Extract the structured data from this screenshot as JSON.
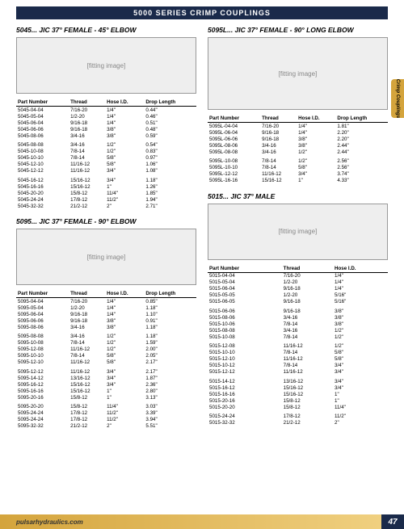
{
  "header": "5000 SERIES CRIMP COUPLINGS",
  "side_tab": "Crimp Couplings",
  "footer_url": "pulsarhydraulics.com",
  "footer_page": "47",
  "sections": {
    "s5045": {
      "title": "5045... JIC 37° FEMALE - 45° ELBOW",
      "img": "[fitting image]",
      "cols": [
        "Part Number",
        "Thread",
        "Hose I.D.",
        "Drop Length"
      ],
      "rows": [
        [
          "5045-04-04",
          "7/16-20",
          "1/4\"",
          "0.44\""
        ],
        [
          "5045-05-04",
          "1/2-20",
          "1/4\"",
          "0.46\""
        ],
        [
          "5045-06-04",
          "9/16-18",
          "1/4\"",
          "0.51\""
        ],
        [
          "5045-06-06",
          "9/16-18",
          "3/8\"",
          "0.48\""
        ],
        [
          "5045-08-06",
          "3/4-16",
          "3/8\"",
          "0.59\""
        ]
      ],
      "rows2": [
        [
          "5045-08-08",
          "3/4-16",
          "1/2\"",
          "0.54\""
        ],
        [
          "5045-10-08",
          "7/8-14",
          "1/2\"",
          "0.83\""
        ],
        [
          "5045-10-10",
          "7/8-14",
          "5/8\"",
          "0.97\""
        ],
        [
          "5045-12-10",
          "11/16-12",
          "5/8\"",
          "1.06\""
        ],
        [
          "5045-12-12",
          "11/16-12",
          "3/4\"",
          "1.08\""
        ]
      ],
      "rows3": [
        [
          "5045-16-12",
          "15/16-12",
          "3/4\"",
          "1.18\""
        ],
        [
          "5045-16-16",
          "15/16-12",
          "1\"",
          "1.26\""
        ],
        [
          "5045-20-20",
          "15/8-12",
          "11/4\"",
          "1.85\""
        ],
        [
          "5045-24-24",
          "17/8-12",
          "11/2\"",
          "1.94\""
        ],
        [
          "5045-32-32",
          "21/2-12",
          "2\"",
          "2.71\""
        ]
      ]
    },
    "s5095": {
      "title": "5095... JIC 37° FEMALE - 90° ELBOW",
      "img": "[fitting image]",
      "cols": [
        "Part Number",
        "Thread",
        "Hose I.D.",
        "Drop Length"
      ],
      "rows": [
        [
          "5095-04-04",
          "7/16-20",
          "1/4\"",
          "0.85\""
        ],
        [
          "5095-05-04",
          "1/2-20",
          "1/4\"",
          "1.18\""
        ],
        [
          "5095-06-04",
          "9/16-18",
          "1/4\"",
          "1.10\""
        ],
        [
          "5095-06-06",
          "9/16-18",
          "3/8\"",
          "0.91\""
        ],
        [
          "5095-08-06",
          "3/4-16",
          "3/8\"",
          "1.18\""
        ]
      ],
      "rows2": [
        [
          "5095-08-08",
          "3/4-16",
          "1/2\"",
          "1.18\""
        ],
        [
          "5095-10-08",
          "7/8-14",
          "1/2\"",
          "1.59\""
        ],
        [
          "5095-12-08",
          "11/16-12",
          "1/2\"",
          "2.00\""
        ],
        [
          "5095-10-10",
          "7/8-14",
          "5/8\"",
          "2.05\""
        ],
        [
          "5095-12-10",
          "11/16-12",
          "5/8\"",
          "2.17\""
        ]
      ],
      "rows3": [
        [
          "5095-12-12",
          "11/16-12",
          "3/4\"",
          "2.17\""
        ],
        [
          "5095-14-12",
          "13/16-12",
          "3/4\"",
          "1.87\""
        ],
        [
          "5095-16-12",
          "15/16-12",
          "3/4\"",
          "2.36\""
        ],
        [
          "5095-16-16",
          "15/16-12",
          "1\"",
          "2.80\""
        ],
        [
          "5095-20-16",
          "15/8-12",
          "1\"",
          "3.13\""
        ]
      ],
      "rows4": [
        [
          "5095-20-20",
          "15/8-12",
          "11/4\"",
          "3.03\""
        ],
        [
          "5095-24-24",
          "17/8-12",
          "11/2\"",
          "3.39\""
        ],
        [
          "5095-24-24",
          "17/8-12",
          "11/2\"",
          "3.94\""
        ],
        [
          "5095-32-32",
          "21/2-12",
          "2\"",
          "5.51\""
        ]
      ]
    },
    "s5095L": {
      "title": "5095L... JIC 37° FEMALE - 90° LONG ELBOW",
      "img": "[fitting image]",
      "cols": [
        "Part Number",
        "Thread",
        "Hose I.D.",
        "Drop  Length"
      ],
      "rows": [
        [
          "5095L-04-04",
          "7/16-20",
          "1/4\"",
          "1.81\""
        ],
        [
          "5095L-06-04",
          "9/16-18",
          "1/4\"",
          "2.20\""
        ],
        [
          "5095L-06-06",
          "9/16-18",
          "3/8\"",
          "2.20\""
        ],
        [
          "5095L-08-06",
          "3/4-16",
          "3/8\"",
          "2.44\""
        ],
        [
          "5095L-08-08",
          "3/4-16",
          "1/2\"",
          "2.44\""
        ]
      ],
      "rows2": [
        [
          "5095L-10-08",
          "7/8-14",
          "1/2\"",
          "2.56\""
        ],
        [
          "5095L-10-10",
          "7/8-14",
          "5/8\"",
          "2.56\""
        ],
        [
          "5095L-12-12",
          "11/16-12",
          "3/4\"",
          "3.74\""
        ],
        [
          "5095L-16-16",
          "15/16-12",
          "1\"",
          "4.33\""
        ]
      ]
    },
    "s5015": {
      "title": "5015... JIC 37° MALE",
      "img": "[fitting image]",
      "cols": [
        "Part Number",
        "Thread",
        "Hose I.D."
      ],
      "rows": [
        [
          "5015-04-04",
          "7/16-20",
          "1/4\""
        ],
        [
          "5015-05-04",
          "1/2-20",
          "1/4\""
        ],
        [
          "5015-06-04",
          "9/16-18",
          "1/4\""
        ],
        [
          "5015-05-05",
          "1/2-20",
          "5/16\""
        ],
        [
          "5015-06-05",
          "9/16-18",
          "5/16\""
        ]
      ],
      "rows2": [
        [
          "5015-06-06",
          "9/16-18",
          "3/8\""
        ],
        [
          "5015-08-06",
          "3/4-16",
          "3/8\""
        ],
        [
          "5015-10-06",
          "7/8-14",
          "3/8\""
        ],
        [
          "5015-08-08",
          "3/4-16",
          "1/2\""
        ],
        [
          "5015-10-08",
          "7/8-14",
          "1/2\""
        ]
      ],
      "rows3": [
        [
          "5015-12-08",
          "11/16-12",
          "1/2\""
        ],
        [
          "5015-10-10",
          "7/8-14",
          "5/8\""
        ],
        [
          "5015-12-10",
          "11/16-12",
          "5/8\""
        ],
        [
          "5015-10-12",
          "7/8-14",
          "3/4\""
        ],
        [
          "5015-12-12",
          "11/16-12",
          "3/4\""
        ]
      ],
      "rows4": [
        [
          "5015-14-12",
          "13/16-12",
          "3/4\""
        ],
        [
          "5015-16-12",
          "15/16-12",
          "3/4\""
        ],
        [
          "5015-16-16",
          "15/16-12",
          "1\""
        ],
        [
          "5015-20-16",
          "15/8-12",
          "1\""
        ],
        [
          "5015-20-20",
          "15/8-12",
          "11/4\""
        ]
      ],
      "rows5": [
        [
          "5015-24-24",
          "17/8-12",
          "11/2\""
        ],
        [
          "5015-32-32",
          "21/2-12",
          "2\""
        ]
      ]
    }
  }
}
